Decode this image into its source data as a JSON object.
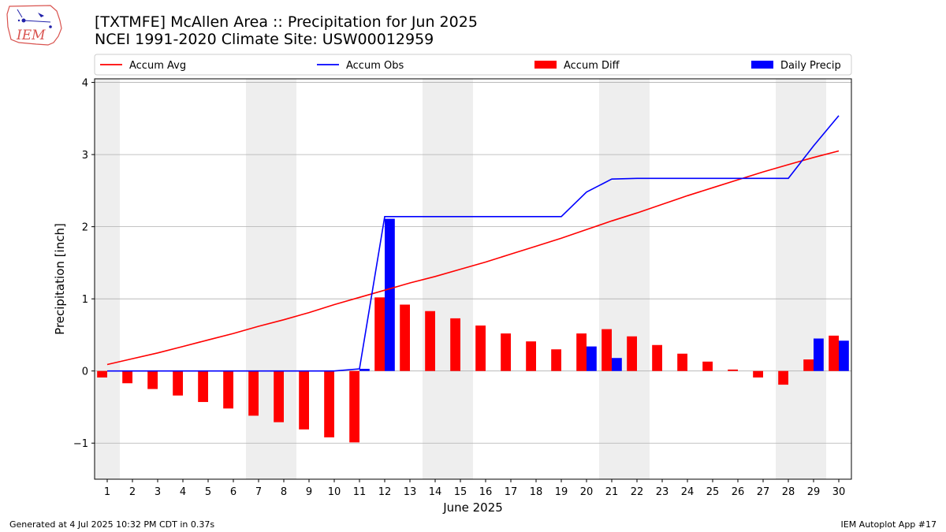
{
  "header": {
    "title_line1": "[TXTMFE] McAllen Area :: Precipitation for Jun 2025",
    "title_line2": "NCEI 1991-2020 Climate Site: USW00012959",
    "logo_text": "IEM"
  },
  "footer": {
    "left": "Generated at 4 Jul 2025 10:32 PM CDT in 0.37s",
    "right": "IEM Autoplot App #17"
  },
  "colors": {
    "accum_avg": "#ff0000",
    "accum_obs": "#0000ff",
    "accum_diff": "#ff0000",
    "daily_precip": "#0000ff",
    "weekend_shade": "#eeeeee",
    "grid": "#b0b0b0"
  },
  "chart_data": {
    "type": "bar",
    "xlabel": "June 2025",
    "ylabel": "Precipitation [inch]",
    "ylim": [
      -1.5,
      4.05
    ],
    "yticks": [
      -1,
      0,
      1,
      2,
      3,
      4
    ],
    "ytick_labels": [
      "−1",
      "0",
      "1",
      "2",
      "3",
      "4"
    ],
    "x": [
      1,
      2,
      3,
      4,
      5,
      6,
      7,
      8,
      9,
      10,
      11,
      12,
      13,
      14,
      15,
      16,
      17,
      18,
      19,
      20,
      21,
      22,
      23,
      24,
      25,
      26,
      27,
      28,
      29,
      30
    ],
    "xlim": [
      0.5,
      30.5
    ],
    "grid": "horizontal",
    "legend_position": "top",
    "shaded_days": [
      1,
      7,
      8,
      14,
      15,
      21,
      22,
      28,
      29
    ],
    "series": [
      {
        "name": "Accum Avg",
        "kind": "line",
        "values": [
          0.09,
          0.17,
          0.25,
          0.34,
          0.43,
          0.52,
          0.62,
          0.71,
          0.81,
          0.92,
          1.02,
          1.12,
          1.22,
          1.31,
          1.41,
          1.51,
          1.62,
          1.73,
          1.84,
          1.96,
          2.08,
          2.19,
          2.31,
          2.43,
          2.54,
          2.65,
          2.76,
          2.86,
          2.96,
          3.05
        ]
      },
      {
        "name": "Accum Obs",
        "kind": "line",
        "values": [
          0,
          0,
          0,
          0,
          0,
          0,
          0,
          0,
          0,
          0,
          0.03,
          2.14,
          2.14,
          2.14,
          2.14,
          2.14,
          2.14,
          2.14,
          2.14,
          2.48,
          2.66,
          2.67,
          2.67,
          2.67,
          2.67,
          2.67,
          2.67,
          2.67,
          3.12,
          3.54
        ]
      },
      {
        "name": "Accum Diff",
        "kind": "bar",
        "values": [
          -0.09,
          -0.17,
          -0.25,
          -0.34,
          -0.43,
          -0.52,
          -0.62,
          -0.71,
          -0.81,
          -0.92,
          -0.99,
          1.02,
          0.92,
          0.83,
          0.73,
          0.63,
          0.52,
          0.41,
          0.3,
          0.52,
          0.58,
          0.48,
          0.36,
          0.24,
          0.13,
          0.02,
          -0.09,
          -0.19,
          0.16,
          0.49
        ]
      },
      {
        "name": "Daily Precip",
        "kind": "bar",
        "values": [
          0,
          0,
          0,
          0,
          0,
          0,
          0,
          0,
          0,
          0,
          0.03,
          2.11,
          0,
          0,
          0,
          0,
          0,
          0,
          0,
          0.34,
          0.18,
          0,
          0,
          0,
          0,
          0,
          0,
          0,
          0.45,
          0.42
        ]
      }
    ]
  }
}
